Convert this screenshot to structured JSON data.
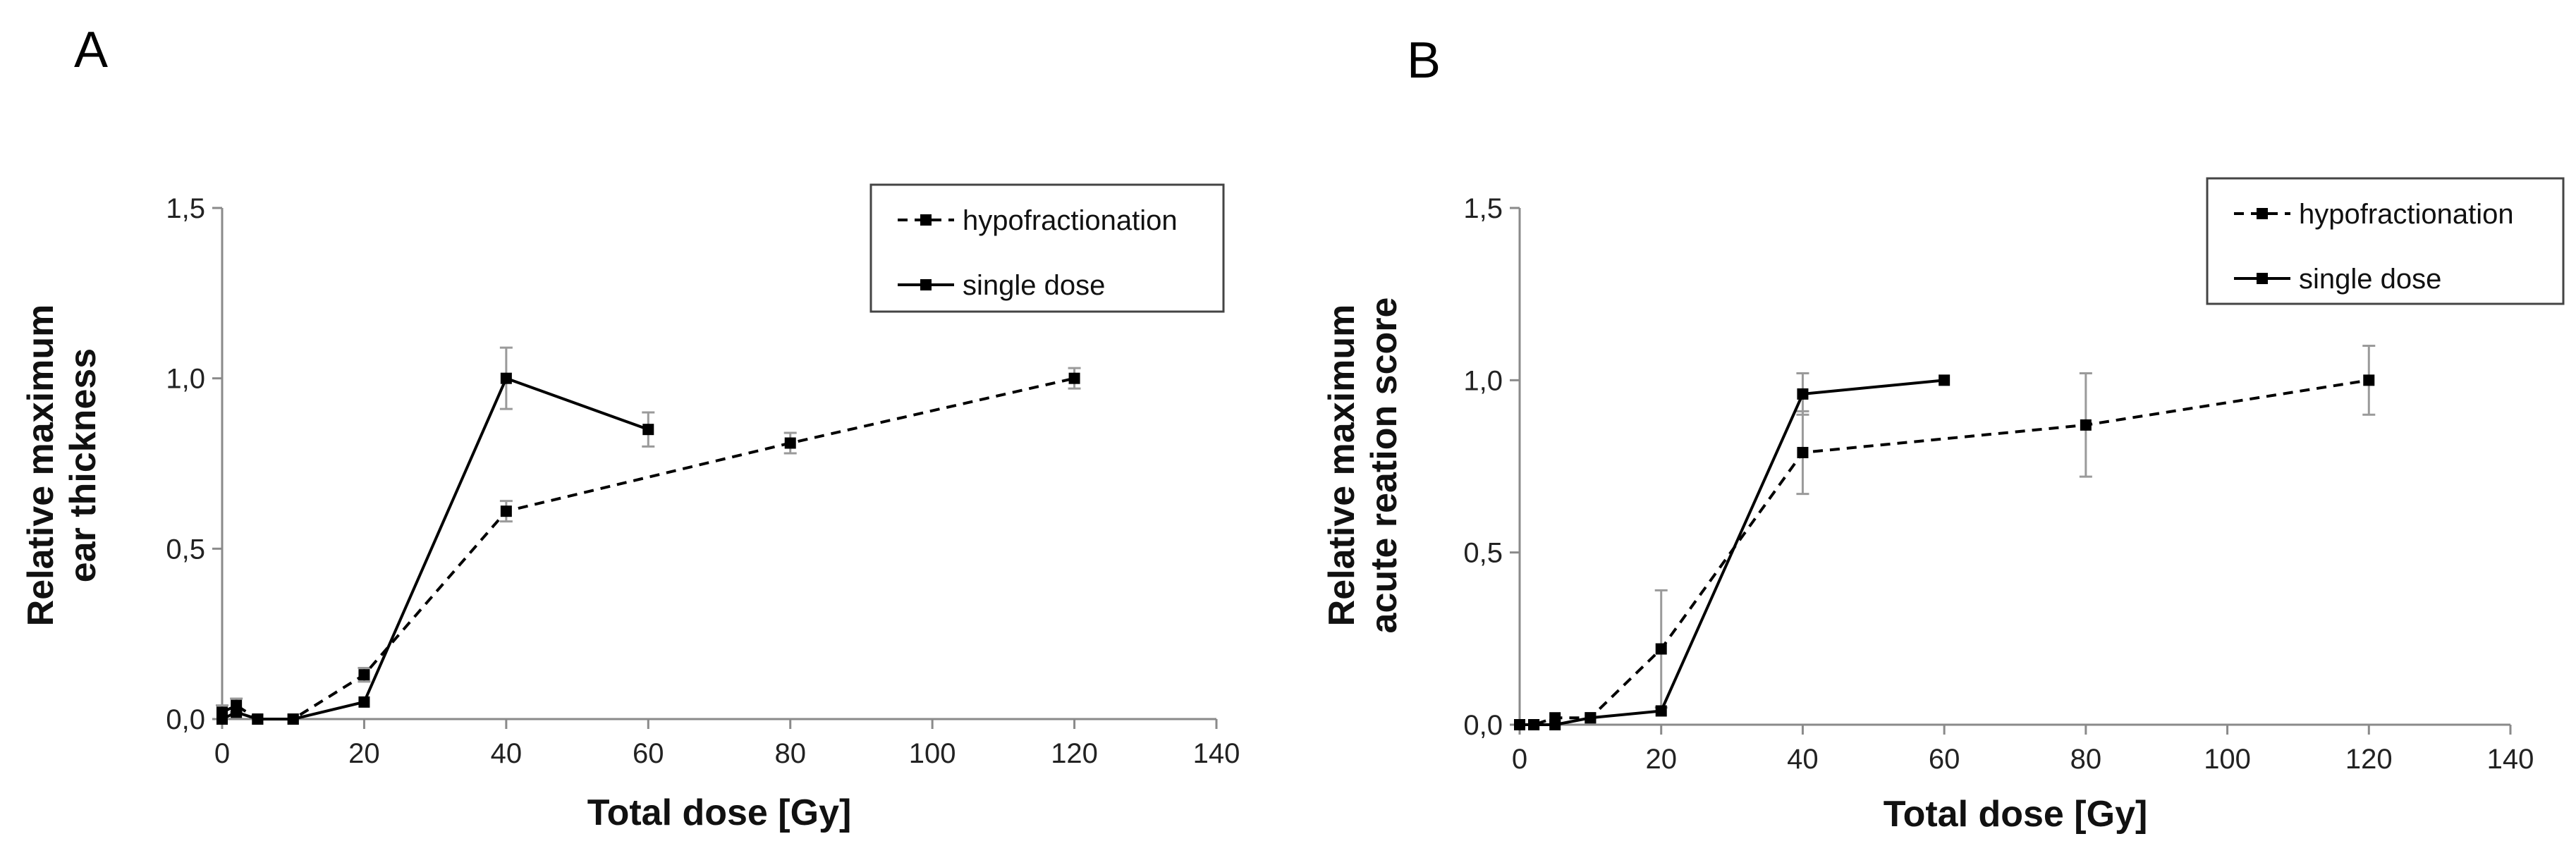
{
  "chart_data": [
    {
      "panel": "A",
      "type": "line",
      "xlabel": "Total dose [Gy]",
      "ylabel": [
        "Relative maximum",
        "ear thickness"
      ],
      "xlim": [
        0,
        140
      ],
      "ylim": [
        0,
        1.5
      ],
      "xticks": [
        "0",
        "20",
        "40",
        "60",
        "80",
        "100",
        "120",
        "140"
      ],
      "yticks": [
        "0,0",
        "0,5",
        "1,0",
        "1,5"
      ],
      "legend_position": "top-right",
      "series": [
        {
          "name": "hypofractionation",
          "style": "dashed",
          "x": [
            0,
            2,
            5,
            10,
            20,
            40,
            80,
            120
          ],
          "y": [
            0.02,
            0.04,
            0.0,
            0.0,
            0.13,
            0.61,
            0.81,
            1.0
          ],
          "err": [
            0.02,
            0.02,
            0.0,
            0.0,
            0.02,
            0.03,
            0.03,
            0.03
          ]
        },
        {
          "name": "single dose",
          "style": "solid",
          "x": [
            0,
            2,
            5,
            10,
            20,
            40,
            60
          ],
          "y": [
            0.0,
            0.02,
            0.0,
            0.0,
            0.05,
            1.0,
            0.85
          ],
          "err": [
            0.0,
            0.0,
            0.0,
            0.0,
            0.0,
            0.09,
            0.05
          ]
        }
      ]
    },
    {
      "panel": "B",
      "type": "line",
      "xlabel": "Total dose [Gy]",
      "ylabel": [
        "Relative maximum",
        "acute reation score"
      ],
      "xlim": [
        0,
        140
      ],
      "ylim": [
        0,
        1.5
      ],
      "xticks": [
        "0",
        "20",
        "40",
        "60",
        "80",
        "100",
        "120",
        "140"
      ],
      "yticks": [
        "0,0",
        "0,5",
        "1,0",
        "1,5"
      ],
      "legend_position": "top-right",
      "series": [
        {
          "name": "hypofractionation",
          "style": "dashed",
          "x": [
            0,
            2,
            5,
            10,
            20,
            40,
            80,
            120
          ],
          "y": [
            0.0,
            0.0,
            0.02,
            0.02,
            0.22,
            0.79,
            0.87,
            1.0
          ],
          "err": [
            0.0,
            0.0,
            0.0,
            0.0,
            0.17,
            0.12,
            0.15,
            0.1
          ]
        },
        {
          "name": "single dose",
          "style": "solid",
          "x": [
            0,
            2,
            5,
            10,
            20,
            40,
            60
          ],
          "y": [
            0.0,
            0.0,
            0.0,
            0.02,
            0.04,
            0.96,
            1.0
          ],
          "err": [
            0.0,
            0.0,
            0.0,
            0.0,
            0.0,
            0.06,
            0.0
          ]
        }
      ]
    }
  ],
  "colors": {
    "line": "#000000",
    "errorbar": "#9a9a9a",
    "axis": "#8a8a8a"
  }
}
